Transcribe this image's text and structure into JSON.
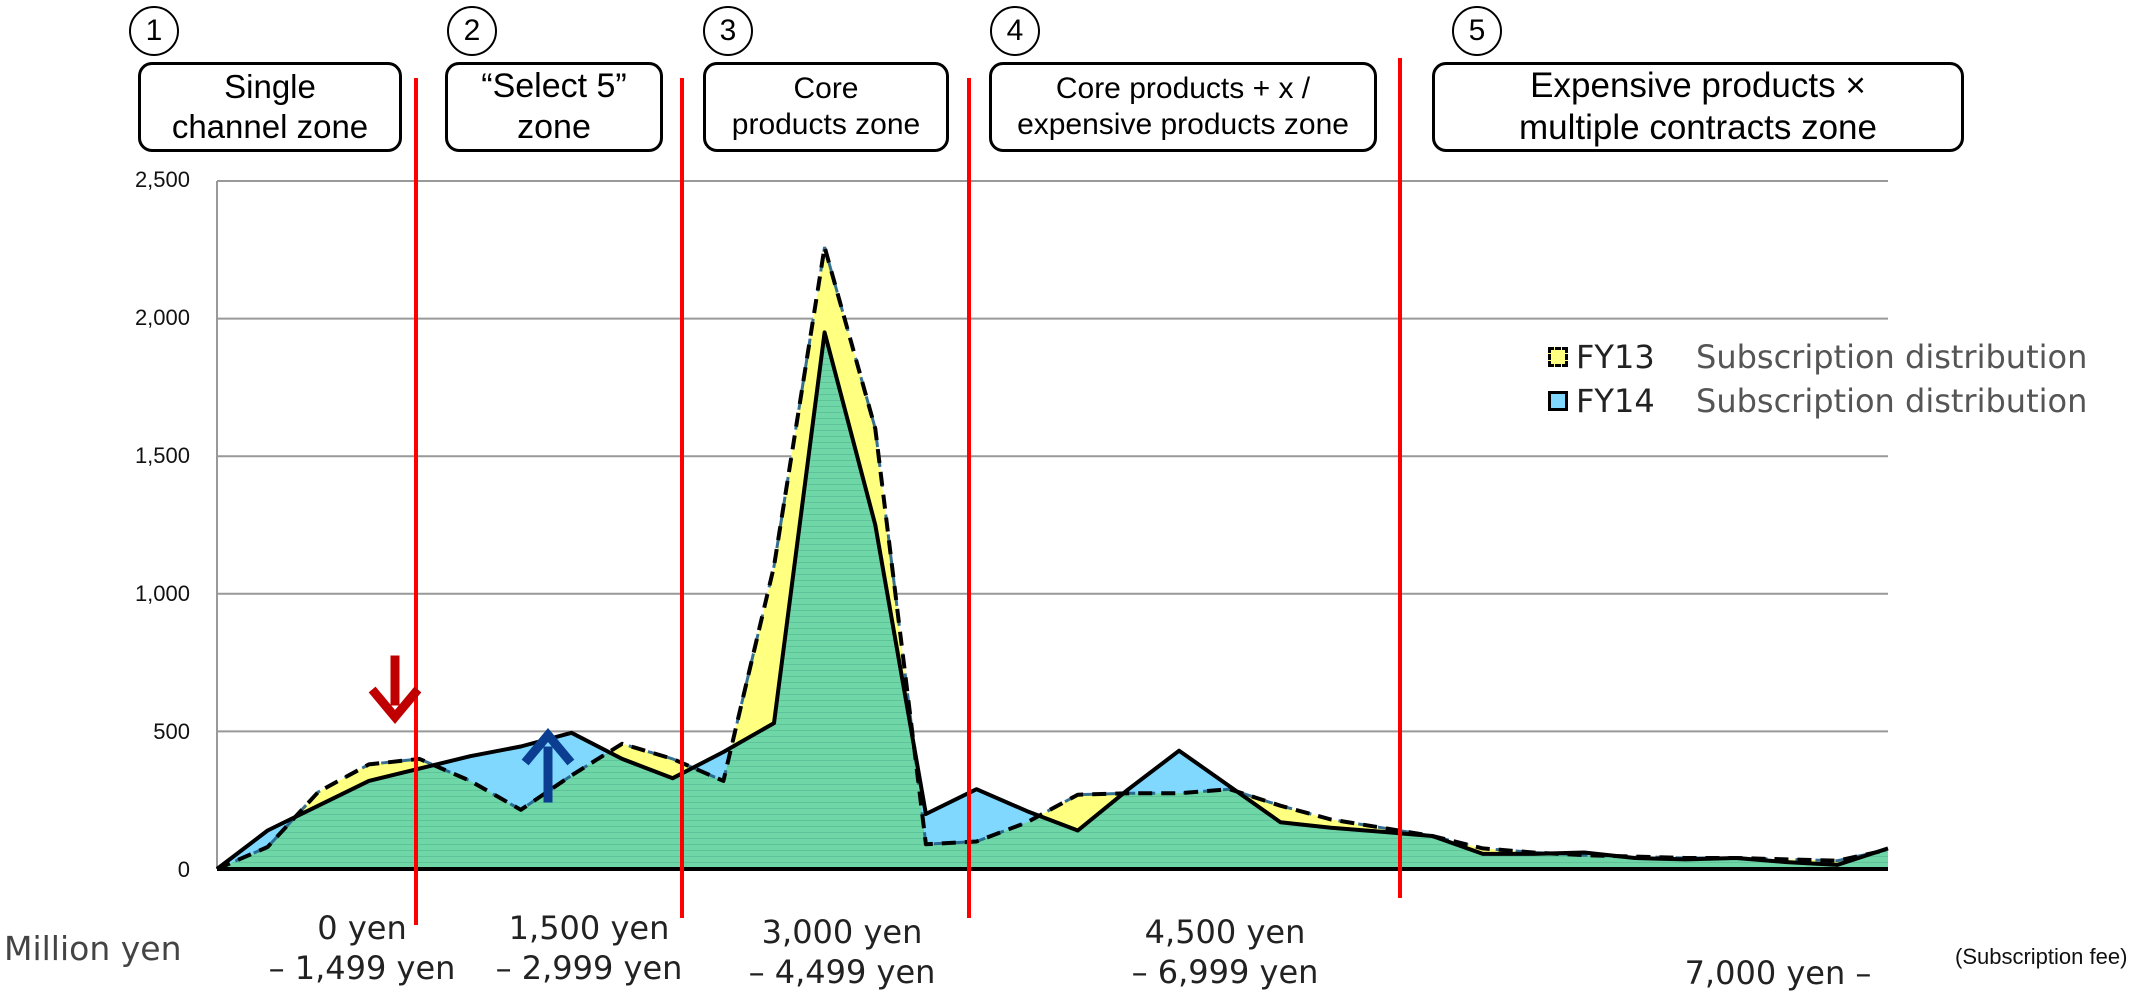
{
  "chart_data": {
    "type": "area",
    "y_unit_label": "Million yen",
    "x_unit_label": "(Subscription fee)",
    "ylim": [
      0,
      2500
    ],
    "yticks": [
      "0",
      "500",
      "1,000",
      "1,500",
      "2,000",
      "2,500"
    ],
    "ytick_values": [
      0,
      500,
      1000,
      1500,
      2000,
      2500
    ],
    "grid": true,
    "legend_placement": "right",
    "series": [
      {
        "name": "FY13",
        "description": "Subscription distribution",
        "style": "dashed",
        "fill": "#ffff80",
        "values": [
          0,
          80,
          280,
          380,
          400,
          320,
          215,
          340,
          455,
          400,
          320,
          1100,
          2260,
          1600,
          90,
          100,
          170,
          270,
          275,
          275,
          290,
          230,
          180,
          150,
          120,
          75,
          60,
          50,
          45,
          40,
          40,
          35,
          30,
          70
        ]
      },
      {
        "name": "FY14",
        "description": "Subscription distribution",
        "style": "solid",
        "fill": "#80d8ff",
        "values": [
          0,
          140,
          230,
          320,
          365,
          410,
          445,
          495,
          400,
          330,
          425,
          530,
          1950,
          1250,
          200,
          290,
          210,
          140,
          290,
          430,
          300,
          170,
          150,
          135,
          120,
          55,
          55,
          60,
          40,
          35,
          40,
          25,
          15,
          75
        ]
      }
    ],
    "zones": [
      {
        "number": "1",
        "label": "Single\nchannel zone",
        "fee": "0 yen\n– 1,499 yen"
      },
      {
        "number": "2",
        "label": "“Select 5”\nzone",
        "fee": "1,500 yen\n– 2,999 yen"
      },
      {
        "number": "3",
        "label": "Core\nproducts zone",
        "fee": "3,000 yen\n– 4,499 yen"
      },
      {
        "number": "4",
        "label": "Core products + x /\nexpensive products zone",
        "fee": "4,500 yen\n–  6,999 yen"
      },
      {
        "number": "5",
        "label": "Expensive products ×\nmultiple contracts zone",
        "fee": "7,000 yen –"
      }
    ],
    "arrows": [
      {
        "name": "decrease-arrow",
        "color": "#c00000",
        "direction": "down"
      },
      {
        "name": "increase-arrow",
        "color": "#0b3d91",
        "direction": "up"
      }
    ],
    "colors": {
      "overlap_fill": "#6fd6a8",
      "zone_divider": "#ff0000",
      "grid": "#999999"
    }
  }
}
